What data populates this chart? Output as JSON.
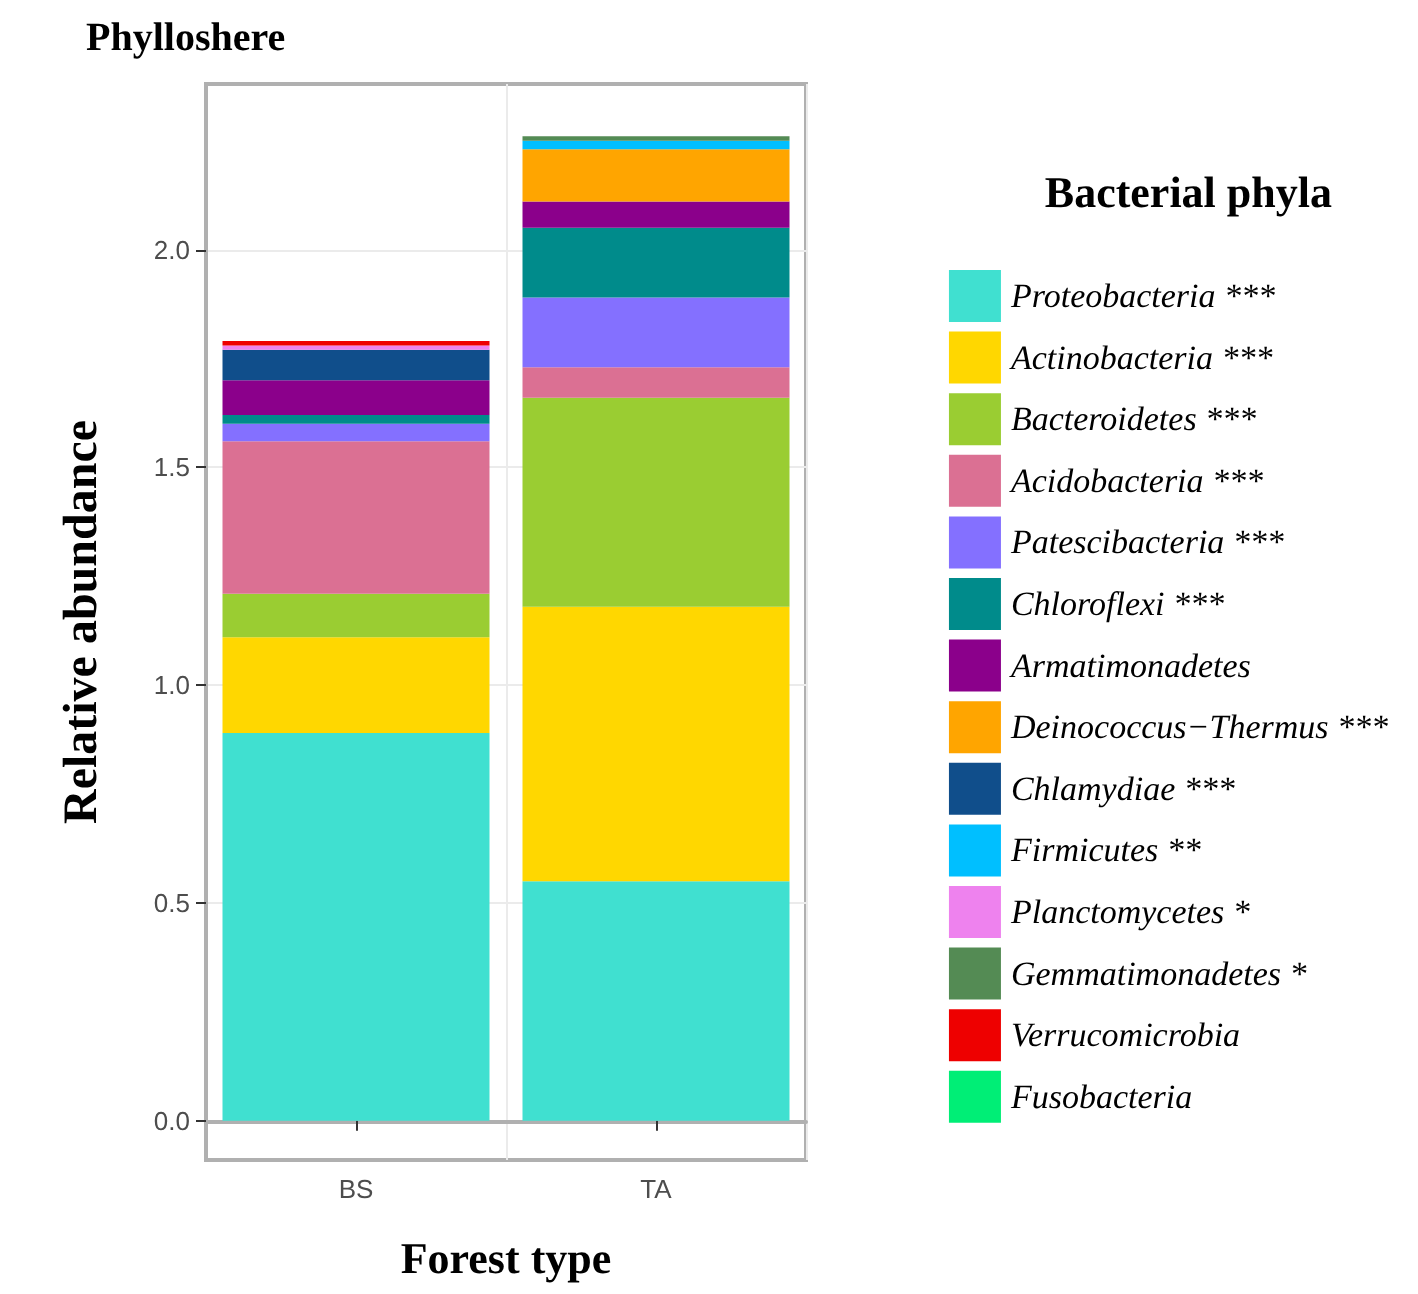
{
  "chart_data": {
    "type": "bar",
    "stacked": true,
    "title": "Phylloshere",
    "xlabel": "Forest type",
    "ylabel": "Relative abundance",
    "legend_title": "Bacterial phyla",
    "categories": [
      "BS",
      "TA"
    ],
    "series": [
      {
        "name": "Proteobacteria ***",
        "color": "#40e0d0",
        "values": [
          0.89,
          0.55
        ]
      },
      {
        "name": "Actinobacteria ***",
        "color": "#ffd700",
        "values": [
          0.22,
          0.63
        ]
      },
      {
        "name": "Bacteroidetes ***",
        "color": "#9acd32",
        "values": [
          0.1,
          0.48
        ]
      },
      {
        "name": "Acidobacteria ***",
        "color": "#db7093",
        "values": [
          0.35,
          0.07
        ]
      },
      {
        "name": "Patescibacteria ***",
        "color": "#8470ff",
        "values": [
          0.04,
          0.16
        ]
      },
      {
        "name": "Chloroflexi ***",
        "color": "#008b8b",
        "values": [
          0.02,
          0.16
        ]
      },
      {
        "name": "Armatimonadetes",
        "color": "#8b008b",
        "values": [
          0.08,
          0.06
        ]
      },
      {
        "name": "Deinococcus−Thermus ***",
        "color": "#ffa500",
        "values": [
          0,
          0.12
        ]
      },
      {
        "name": "Chlamydiae ***",
        "color": "#104e8b",
        "values": [
          0.07,
          0
        ]
      },
      {
        "name": "Firmicutes **",
        "color": "#00bfff",
        "values": [
          0,
          0.02
        ]
      },
      {
        "name": "Planctomycetes *",
        "color": "#ee82ee",
        "values": [
          0.01,
          0
        ]
      },
      {
        "name": "Gemmatimonadetes *",
        "color": "#548b54",
        "values": [
          0,
          0.01
        ]
      },
      {
        "name": "Verrucomicrobia",
        "color": "#ee0000",
        "values": [
          0.01,
          0
        ]
      },
      {
        "name": "Fusobacteria",
        "color": "#00ee76",
        "values": [
          0,
          0
        ]
      }
    ],
    "ylim": [
      -0.09,
      2.38
    ],
    "yticks": [
      {
        "value": 0,
        "label": "0.0"
      },
      {
        "value": 0.5,
        "label": "0.5"
      },
      {
        "value": 1,
        "label": "1.0"
      },
      {
        "value": 1.5,
        "label": "1.5"
      },
      {
        "value": 2,
        "label": "2.0"
      }
    ],
    "grid": true,
    "legend": "right"
  }
}
